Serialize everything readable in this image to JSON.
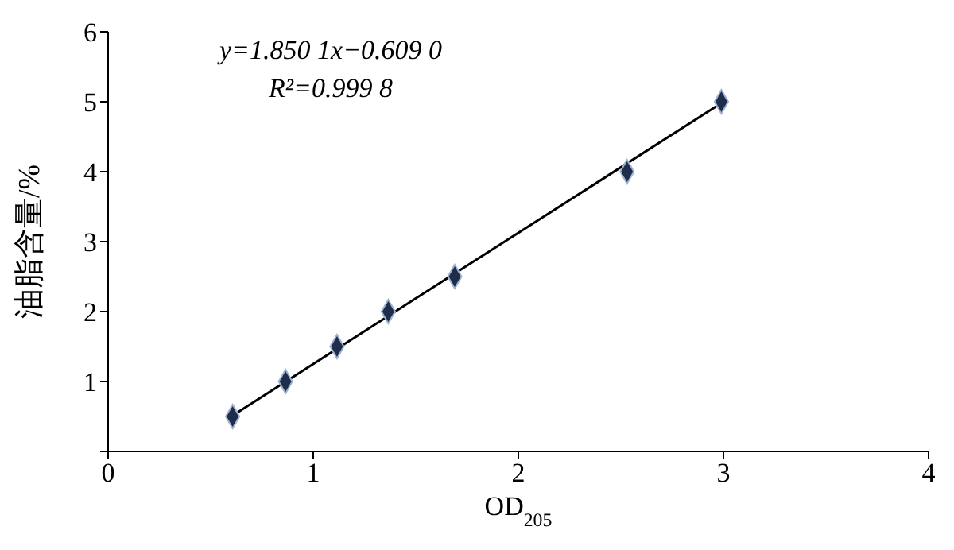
{
  "chart_data": {
    "type": "scatter",
    "xlabel": "OD$_{205}$",
    "ylabel": "油脂含量/%",
    "annotations": [
      "y=1.850 1x−0.609 0",
      "R²=0.999 8"
    ],
    "xlim": [
      0,
      4
    ],
    "xticks": [
      0,
      1,
      2,
      3,
      4
    ],
    "ylim": [
      0,
      6
    ],
    "yticks": [
      {
        "value": 0,
        "label": null
      },
      1,
      2,
      3,
      4,
      5,
      6
    ],
    "grid": false,
    "marker": "diamond",
    "series": [
      {
        "color": "#1f2d4d",
        "x": [
          0.607,
          0.865,
          1.116,
          1.366,
          1.69,
          2.53,
          2.99
        ],
        "values": [
          0.5,
          1,
          1.5,
          2,
          2.5,
          4,
          5
        ]
      },
      {
        "type": "line",
        "color": "#000000",
        "marker": "none",
        "line_style": "solid",
        "x": [
          0.6,
          3.0
        ],
        "values": [
          0.5,
          5.0
        ]
      }
    ]
  }
}
